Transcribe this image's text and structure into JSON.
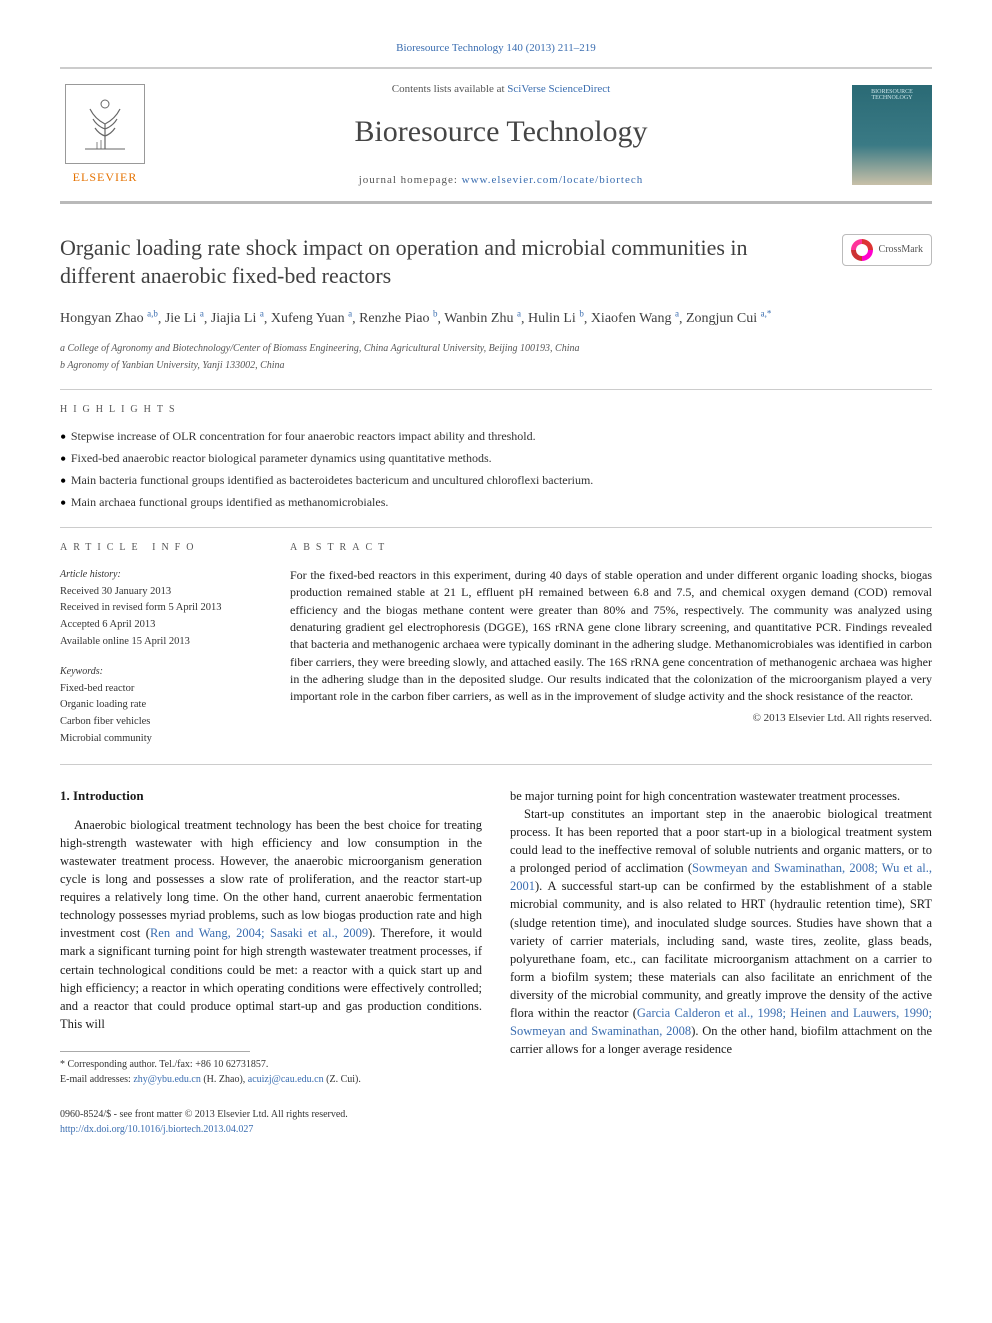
{
  "top_link": "Bioresource Technology 140 (2013) 211–219",
  "header": {
    "contents_prefix": "Contents lists available at ",
    "contents_link": "SciVerse ScienceDirect",
    "journal": "Bioresource Technology",
    "homepage_prefix": "journal homepage: ",
    "homepage_link": "www.elsevier.com/locate/biortech",
    "publisher_label": "ELSEVIER",
    "cover_line1": "BIORESOURCE",
    "cover_line2": "TECHNOLOGY"
  },
  "article": {
    "title": "Organic loading rate shock impact on operation and microbial communities in different anaerobic fixed-bed reactors",
    "crossmark_label": "CrossMark",
    "authors_html": "Hongyan Zhao",
    "authors": [
      {
        "name": "Hongyan Zhao",
        "sup": "a,b"
      },
      {
        "name": "Jie Li",
        "sup": "a"
      },
      {
        "name": "Jiajia Li",
        "sup": "a"
      },
      {
        "name": "Xufeng Yuan",
        "sup": "a"
      },
      {
        "name": "Renzhe Piao",
        "sup": "b"
      },
      {
        "name": "Wanbin Zhu",
        "sup": "a"
      },
      {
        "name": "Hulin Li",
        "sup": "b"
      },
      {
        "name": "Xiaofen Wang",
        "sup": "a"
      },
      {
        "name": "Zongjun Cui",
        "sup": "a,*"
      }
    ],
    "affiliations": [
      "a College of Agronomy and Biotechnology/Center of Biomass Engineering, China Agricultural University, Beijing 100193, China",
      "b Agronomy of Yanbian University, Yanji 133002, China"
    ]
  },
  "highlights": {
    "label": "HIGHLIGHTS",
    "items": [
      "Stepwise increase of OLR concentration for four anaerobic reactors impact ability and threshold.",
      "Fixed-bed anaerobic reactor biological parameter dynamics using quantitative methods.",
      "Main bacteria functional groups identified as bacteroidetes bactericum and uncultured chloroflexi bacterium.",
      "Main archaea functional groups identified as methanomicrobiales."
    ]
  },
  "info": {
    "label": "ARTICLE INFO",
    "history_head": "Article history:",
    "history": [
      "Received 30 January 2013",
      "Received in revised form 5 April 2013",
      "Accepted 6 April 2013",
      "Available online 15 April 2013"
    ],
    "keywords_head": "Keywords:",
    "keywords": [
      "Fixed-bed reactor",
      "Organic loading rate",
      "Carbon fiber vehicles",
      "Microbial community"
    ]
  },
  "abstract": {
    "label": "ABSTRACT",
    "body": "For the fixed-bed reactors in this experiment, during 40 days of stable operation and under different organic loading shocks, biogas production remained stable at 21 L, effluent pH remained between 6.8 and 7.5, and chemical oxygen demand (COD) removal efficiency and the biogas methane content were greater than 80% and 75%, respectively. The community was analyzed using denaturing gradient gel electrophoresis (DGGE), 16S rRNA gene clone library screening, and quantitative PCR. Findings revealed that bacteria and methanogenic archaea were typically dominant in the adhering sludge. Methanomicrobiales was identified in carbon fiber carriers, they were breeding slowly, and attached easily. The 16S rRNA gene concentration of methanogenic archaea was higher in the adhering sludge than in the deposited sludge. Our results indicated that the colonization of the microorganism played a very important role in the carbon fiber carriers, as well as in the improvement of sludge activity and the shock resistance of the reactor.",
    "copyright": "© 2013 Elsevier Ltd. All rights reserved."
  },
  "body": {
    "intro_head": "1. Introduction",
    "left_p1a": "Anaerobic biological treatment technology has been the best choice for treating high-strength wastewater with high efficiency and low consumption in the wastewater treatment process. However, the anaerobic microorganism generation cycle is long and possesses a slow rate of proliferation, and the reactor start-up requires a relatively long time. On the other hand, current anaerobic fermentation technology possesses myriad problems, such as low biogas production rate and high investment cost (",
    "left_cite1": "Ren and Wang, 2004; Sasaki et al., 2009",
    "left_p1b": "). Therefore, it would mark a significant turning point for high strength wastewater treatment processes, if certain technological conditions could be met: a reactor with a quick start up and high efficiency; a reactor in which operating conditions were effectively controlled; and a reactor that could produce optimal start-up and gas production conditions. This will",
    "right_p1": "be major turning point for high concentration wastewater treatment processes.",
    "right_p2a": "Start-up constitutes an important step in the anaerobic biological treatment process. It has been reported that a poor start-up in a biological treatment system could lead to the ineffective removal of soluble nutrients and organic matters, or to a prolonged period of acclimation (",
    "right_cite1": "Sowmeyan and Swaminathan, 2008; Wu et al., 2001",
    "right_p2b": "). A successful start-up can be confirmed by the establishment of a stable microbial community, and is also related to HRT (hydraulic retention time), SRT (sludge retention time), and inoculated sludge sources. Studies have shown that a variety of carrier materials, including sand, waste tires, zeolite, glass beads, polyurethane foam, etc., can facilitate microorganism attachment on a carrier to form a biofilm system; these materials can also facilitate an enrichment of the diversity of the microbial community, and greatly improve the density of the active flora within the reactor (",
    "right_cite2": "Garcia Calderon et al., 1998; Heinen and Lauwers, 1990; Sowmeyan and Swaminathan, 2008",
    "right_p2c": "). On the other hand, biofilm attachment on the carrier allows for a longer average residence"
  },
  "footnote": {
    "corr": "* Corresponding author. Tel./fax: +86 10 62731857.",
    "email_label": "E-mail addresses: ",
    "email1": "zhy@ybu.edu.cn",
    "email1_who": " (H. Zhao), ",
    "email2": "acuizj@cau.edu.cn",
    "email2_who": " (Z. Cui)."
  },
  "bottom": {
    "line1": "0960-8524/$ - see front matter © 2013 Elsevier Ltd. All rights reserved.",
    "doi": "http://dx.doi.org/10.1016/j.biortech.2013.04.027"
  },
  "colors": {
    "link": "#3a6db0",
    "elsevier": "#e57200",
    "text": "#1a1a1a"
  }
}
